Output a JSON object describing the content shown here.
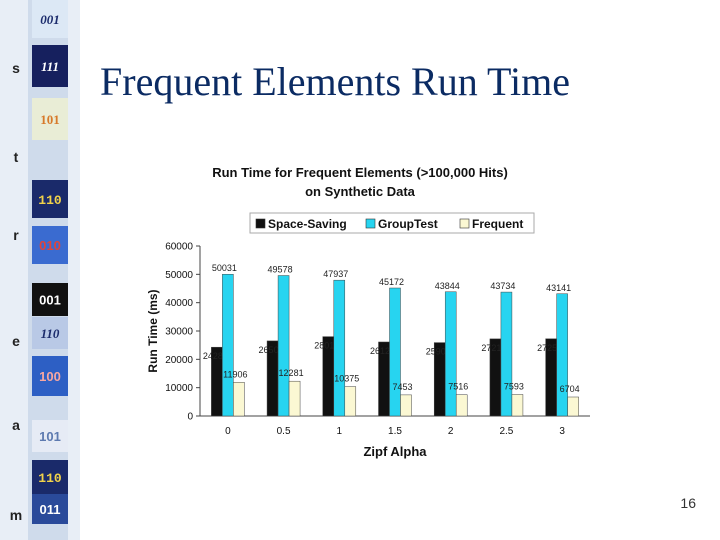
{
  "slide": {
    "title": "Frequent Elements Run Time",
    "page_number": "16",
    "stripe_letters": [
      "s",
      "t",
      "r",
      "e",
      "a",
      "m"
    ],
    "stripe_codes": [
      "001",
      "111",
      "101",
      "110",
      "010",
      "001",
      "110",
      "100",
      "101",
      "110",
      "011"
    ]
  },
  "colors": {
    "title": "#0b2b63",
    "space_saving": "#111111",
    "grouptest": "#27d4f0",
    "frequent": "#fbf8d3"
  },
  "chart_data": {
    "type": "bar",
    "title": "Run Time for Frequent Elements (>100,000 Hits)",
    "subtitle": "on Synthetic Data",
    "xlabel": "Zipf Alpha",
    "ylabel": "Run Time (ms)",
    "ylim": [
      0,
      60000
    ],
    "y_ticks": [
      0,
      10000,
      20000,
      30000,
      40000,
      50000,
      60000
    ],
    "grid": false,
    "legend_position": "top",
    "categories": [
      "0",
      "0.5",
      "1",
      "1.5",
      "2",
      "2.5",
      "3"
    ],
    "series": [
      {
        "name": "Space-Saving",
        "values": [
          24281,
          26500,
          28015,
          26125,
          25906,
          27218,
          27250
        ]
      },
      {
        "name": "GroupTest",
        "values": [
          50031,
          49578,
          47937,
          45172,
          43844,
          43734,
          43141
        ]
      },
      {
        "name": "Frequent",
        "values": [
          11906,
          12281,
          10375,
          7453,
          7516,
          7593,
          6704
        ]
      }
    ]
  }
}
